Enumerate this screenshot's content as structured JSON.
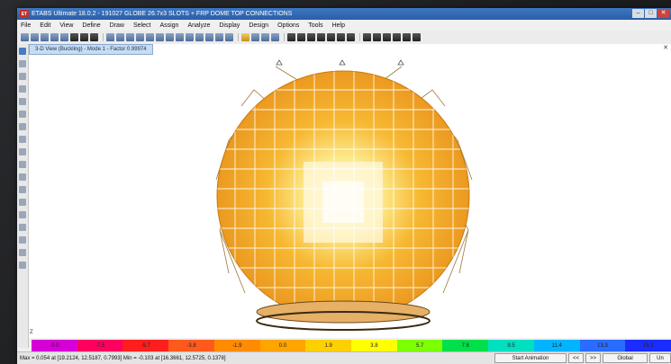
{
  "window": {
    "title": "ETABS Ultimate 18.0.2 - 191027 GLOBE 26.7x3 SLOTS + FRP DOME TOP CONNECTIONS",
    "logo": "ET",
    "controls": [
      "–",
      "□",
      "✕"
    ]
  },
  "menu": [
    "File",
    "Edit",
    "View",
    "Define",
    "Draw",
    "Select",
    "Assign",
    "Analyze",
    "Display",
    "Design",
    "Options",
    "Tools",
    "Help"
  ],
  "view_tab": {
    "label": "3-D View  (Buckling) - Mode 1 - Factor 0.99974",
    "close": "✕"
  },
  "axis_label": "Z",
  "colors": {
    "dome_base": "#f5a623",
    "dome_light": "#fff6d8",
    "dome_highlight": "#fde98a"
  },
  "legend": [
    {
      "label": "-9.0",
      "color": "#d600d6"
    },
    {
      "label": "-7.5",
      "color": "#ff0060"
    },
    {
      "label": "-5.7",
      "color": "#ff1e1e"
    },
    {
      "label": "-3.8",
      "color": "#ff5a1e"
    },
    {
      "label": "-1.9",
      "color": "#ff8c00"
    },
    {
      "label": "0.0",
      "color": "#ffa500"
    },
    {
      "label": "1.9",
      "color": "#ffd000"
    },
    {
      "label": "3.8",
      "color": "#ffff00"
    },
    {
      "label": "5.7",
      "color": "#7cff00"
    },
    {
      "label": "7.6",
      "color": "#00e04a"
    },
    {
      "label": "9.5",
      "color": "#00e0c0"
    },
    {
      "label": "11.4",
      "color": "#00b4ff"
    },
    {
      "label": "13.3",
      "color": "#2a6cff"
    },
    {
      "label": "15.2",
      "color": "#1a2cff"
    }
  ],
  "status": {
    "text": "Max = 0.054 at [19.2124, 12.5187, 0.7993]   Min = -0.103 at [16.3661, 12.5725, 0.1378]",
    "start_animation": "Start Animation",
    "prev": "<<",
    "next": ">>",
    "coord_system": "Global",
    "units": "Un"
  }
}
